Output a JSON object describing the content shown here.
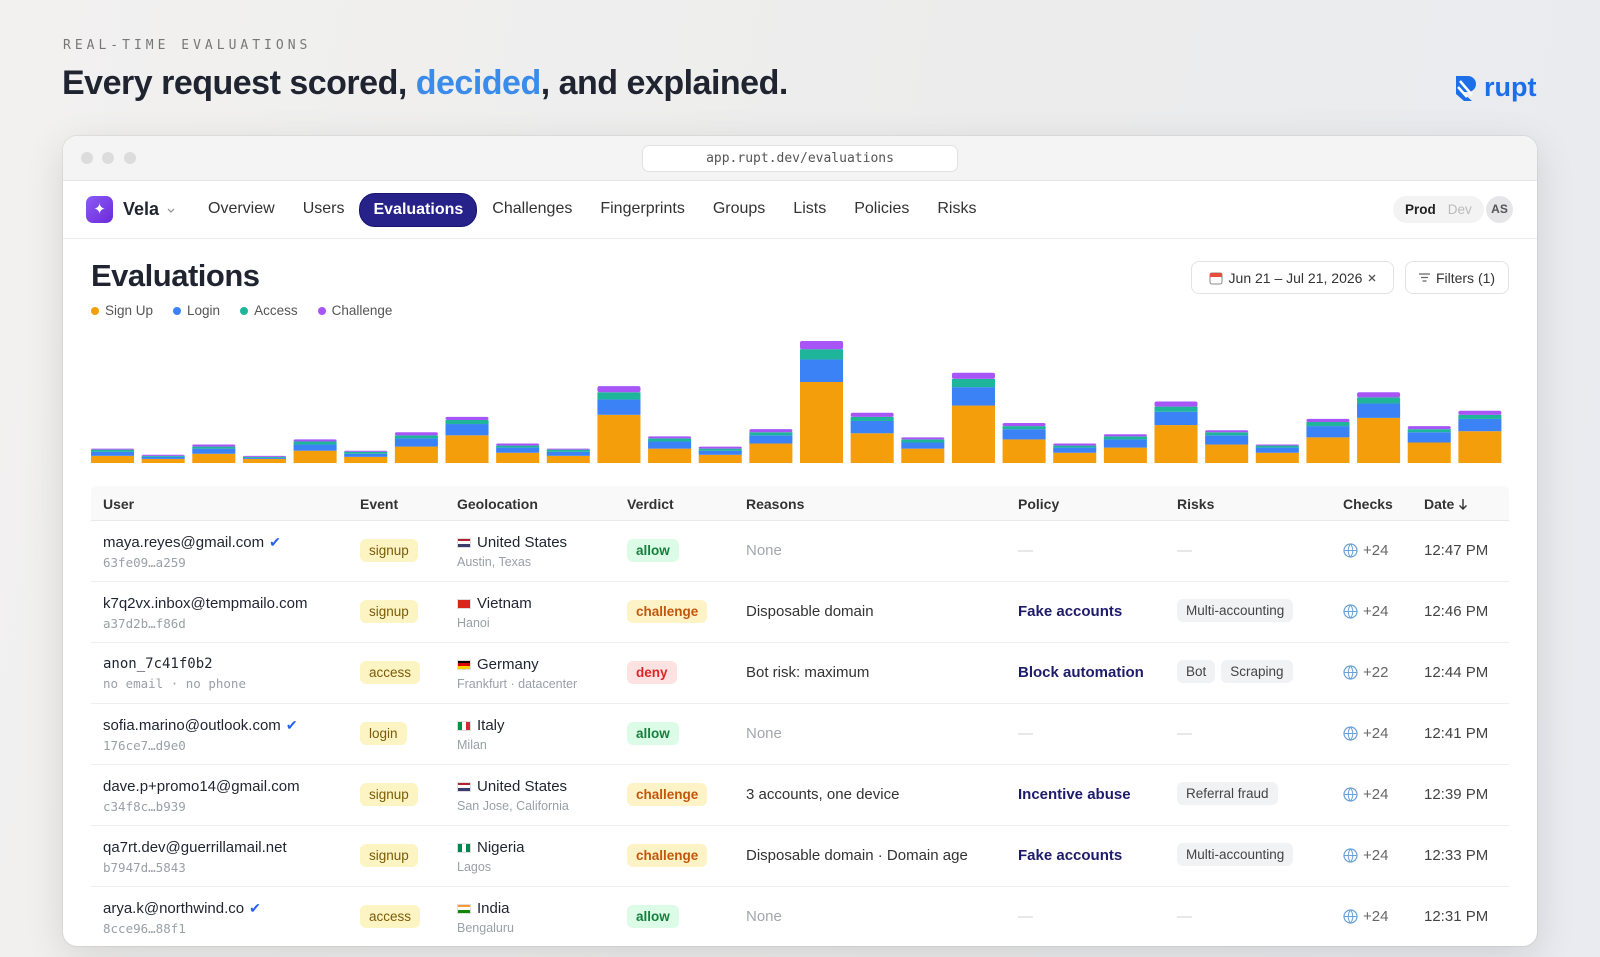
{
  "header": {
    "eyebrow": "REAL-TIME EVALUATIONS",
    "headline": [
      "Every request scored, ",
      "decided",
      ", and explained."
    ],
    "logo": "rupt"
  },
  "browser": {
    "url": "app.rupt.dev/evaluations"
  },
  "nav": {
    "workspace": "Vela",
    "items": [
      "Overview",
      "Users",
      "Evaluations",
      "Challenges",
      "Fingerprints",
      "Groups",
      "Lists",
      "Policies",
      "Risks"
    ],
    "active": "Evaluations",
    "env": [
      "Prod",
      "Dev"
    ],
    "env_active": "Prod",
    "avatar": "AS"
  },
  "page": {
    "title": "Evaluations",
    "date_range": "Jun 21 – Jul 21, 2026",
    "filters": "Filters (1)"
  },
  "chart_data": {
    "type": "bar",
    "stacked": true,
    "series": [
      {
        "name": "Sign Up",
        "color": "#f59e0b",
        "values": [
          7,
          4,
          9,
          4,
          12,
          6,
          16,
          27,
          10,
          7,
          47,
          14,
          8,
          19,
          79,
          29,
          14,
          56,
          23,
          10,
          15,
          37,
          18,
          10,
          25,
          44,
          20,
          31
        ]
      },
      {
        "name": "Login",
        "color": "#3b82f6",
        "values": [
          4,
          2,
          5,
          1,
          6,
          3,
          8,
          11,
          5,
          4,
          15,
          7,
          4,
          8,
          22,
          12,
          6,
          18,
          10,
          5,
          8,
          13,
          9,
          5,
          11,
          14,
          10,
          12
        ]
      },
      {
        "name": "Access",
        "color": "#1fb59a",
        "values": [
          2,
          1,
          2,
          1,
          3,
          2,
          3,
          4,
          2,
          2,
          7,
          3,
          2,
          3,
          10,
          4,
          3,
          8,
          3,
          2,
          3,
          5,
          3,
          2,
          4,
          6,
          3,
          4
        ]
      },
      {
        "name": "Challenge",
        "color": "#a855f7",
        "values": [
          1,
          1,
          2,
          1,
          2,
          1,
          3,
          3,
          2,
          1,
          6,
          2,
          2,
          3,
          8,
          4,
          2,
          6,
          3,
          2,
          2,
          5,
          2,
          1,
          3,
          5,
          3,
          4
        ]
      }
    ]
  },
  "table": {
    "columns": [
      "User",
      "Event",
      "Geolocation",
      "Verdict",
      "Reasons",
      "Policy",
      "Risks",
      "Checks",
      "Date"
    ],
    "sort_column": "Date",
    "rows": [
      {
        "user": "maya.reyes@gmail.com",
        "verified": true,
        "mono_user": false,
        "id": "63fe09…a259",
        "event": "signup",
        "flag": {
          "dir": "h",
          "colors": [
            "#b22234",
            "#ffffff",
            "#3c3b6e"
          ]
        },
        "country": "United States",
        "place": "Austin, Texas",
        "verdict": "allow",
        "reasons": "None",
        "policy": "—",
        "risks": "—",
        "checks": "+24",
        "date": "12:47 PM"
      },
      {
        "user": "k7q2vx.inbox@tempmailo.com",
        "verified": false,
        "mono_user": false,
        "id": "a37d2b…f86d",
        "event": "signup",
        "flag": {
          "dir": "h",
          "colors": [
            "#da251d"
          ]
        },
        "country": "Vietnam",
        "place": "Hanoi",
        "verdict": "challenge",
        "reasons": "Disposable domain",
        "policy": "Fake accounts",
        "risks": [
          "Multi-accounting"
        ],
        "checks": "+24",
        "date": "12:46 PM"
      },
      {
        "user": "anon_7c41f0b2",
        "verified": false,
        "mono_user": true,
        "id": "no email · no phone",
        "event": "access",
        "flag": {
          "dir": "h",
          "colors": [
            "#000000",
            "#dd0000",
            "#ffce00"
          ]
        },
        "country": "Germany",
        "place": "Frankfurt · datacenter",
        "verdict": "deny",
        "reasons": "Bot risk: maximum",
        "policy": "Block automation",
        "risks": [
          "Bot",
          "Scraping"
        ],
        "checks": "+22",
        "date": "12:44 PM"
      },
      {
        "user": "sofia.marino@outlook.com",
        "verified": true,
        "mono_user": false,
        "id": "176ce7…d9e0",
        "event": "login",
        "flag": {
          "dir": "v",
          "colors": [
            "#009246",
            "#ffffff",
            "#ce2b37"
          ]
        },
        "country": "Italy",
        "place": "Milan",
        "verdict": "allow",
        "reasons": "None",
        "policy": "—",
        "risks": "—",
        "checks": "+24",
        "date": "12:41 PM"
      },
      {
        "user": "dave.p+promo14@gmail.com",
        "verified": false,
        "mono_user": false,
        "id": "c34f8c…b939",
        "event": "signup",
        "flag": {
          "dir": "h",
          "colors": [
            "#b22234",
            "#ffffff",
            "#3c3b6e"
          ]
        },
        "country": "United States",
        "place": "San Jose, California",
        "verdict": "challenge",
        "reasons": "3 accounts, one device",
        "policy": "Incentive abuse",
        "risks": [
          "Referral fraud"
        ],
        "checks": "+24",
        "date": "12:39 PM"
      },
      {
        "user": "qa7rt.dev@guerrillamail.net",
        "verified": false,
        "mono_user": false,
        "id": "b7947d…5843",
        "event": "signup",
        "flag": {
          "dir": "v",
          "colors": [
            "#008751",
            "#ffffff",
            "#008751"
          ]
        },
        "country": "Nigeria",
        "place": "Lagos",
        "verdict": "challenge",
        "reasons": "Disposable domain · Domain age",
        "policy": "Fake accounts",
        "risks": [
          "Multi-accounting"
        ],
        "checks": "+24",
        "date": "12:33 PM"
      },
      {
        "user": "arya.k@northwind.co",
        "verified": true,
        "mono_user": false,
        "id": "8cce96…88f1",
        "event": "access",
        "flag": {
          "dir": "h",
          "colors": [
            "#ff9933",
            "#ffffff",
            "#138808"
          ]
        },
        "country": "India",
        "place": "Bengaluru",
        "verdict": "allow",
        "reasons": "None",
        "policy": "—",
        "risks": "—",
        "checks": "+24",
        "date": "12:31 PM"
      }
    ]
  },
  "verdict_styles": {
    "allow": {
      "bg": "#dcfce7",
      "fg": "#15803d",
      "muted": true
    },
    "challenge": {
      "bg": "#fef3c7",
      "fg": "#c2570c",
      "muted": false
    },
    "deny": {
      "bg": "#fee2e2",
      "fg": "#dc2626",
      "muted": false
    }
  }
}
